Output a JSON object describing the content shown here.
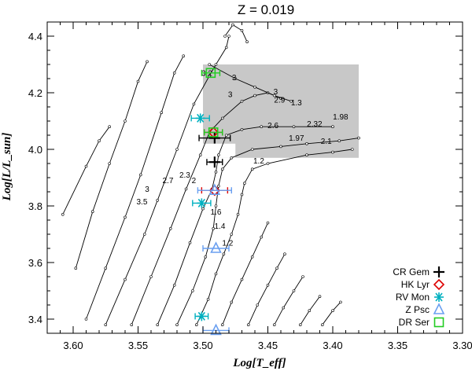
{
  "chart_data": {
    "type": "scatter",
    "title": "Z = 0.019",
    "xlabel": "Log[T_eff]",
    "ylabel": "Log[L/L_sun]",
    "xlim": [
      3.62,
      3.3
    ],
    "ylim": [
      3.35,
      4.45
    ],
    "x_ticks": [
      3.6,
      3.55,
      3.5,
      3.45,
      3.4,
      3.35,
      3.3
    ],
    "y_ticks": [
      3.4,
      3.6,
      3.8,
      4.0,
      4.2,
      4.4
    ],
    "shaded_region": {
      "x": [
        3.5,
        3.38
      ],
      "y": [
        3.97,
        4.3
      ],
      "color": "#c8c8c8",
      "notch": {
        "x": [
          3.5,
          3.475
        ],
        "y": [
          3.97,
          4.02
        ]
      }
    },
    "tracks": [
      {
        "points": [
          [
            3.608,
            3.77
          ],
          [
            3.59,
            3.94
          ],
          [
            3.58,
            4.03
          ],
          [
            3.572,
            4.08
          ]
        ]
      },
      {
        "points": [
          [
            3.598,
            3.58
          ],
          [
            3.585,
            3.78
          ],
          [
            3.572,
            3.95
          ],
          [
            3.56,
            4.1
          ],
          [
            3.55,
            4.24
          ],
          [
            3.543,
            4.31
          ]
        ]
      },
      {
        "points": [
          [
            3.59,
            3.4
          ],
          [
            3.575,
            3.58
          ],
          [
            3.56,
            3.76
          ],
          [
            3.548,
            3.91
          ],
          [
            3.532,
            4.13
          ],
          [
            3.522,
            4.27
          ],
          [
            3.515,
            4.33
          ]
        ]
      },
      {
        "points": [
          [
            3.575,
            3.38
          ],
          [
            3.56,
            3.54
          ],
          [
            3.545,
            3.7
          ],
          [
            3.535,
            3.82
          ],
          [
            3.52,
            4.0
          ],
          [
            3.507,
            4.16
          ],
          [
            3.495,
            4.26
          ],
          [
            3.49,
            4.3
          ],
          [
            3.482,
            4.36
          ],
          [
            3.48,
            4.4
          ]
        ]
      },
      {
        "points": [
          [
            3.555,
            3.38
          ],
          [
            3.54,
            3.55
          ],
          [
            3.525,
            3.72
          ],
          [
            3.513,
            3.86
          ],
          [
            3.502,
            3.98
          ],
          [
            3.495,
            4.06
          ],
          [
            3.485,
            4.11
          ],
          [
            3.47,
            4.17
          ],
          [
            3.46,
            4.19
          ],
          [
            3.45,
            4.2
          ],
          [
            3.44,
            4.18
          ]
        ]
      },
      {
        "points": [
          [
            3.535,
            3.38
          ],
          [
            3.522,
            3.52
          ],
          [
            3.51,
            3.67
          ],
          [
            3.5,
            3.79
          ],
          [
            3.493,
            3.86
          ],
          [
            3.49,
            3.92
          ],
          [
            3.488,
            3.98
          ],
          [
            3.482,
            4.05
          ],
          [
            3.47,
            4.07
          ],
          [
            3.455,
            4.08
          ],
          [
            3.43,
            4.08
          ],
          [
            3.4,
            4.08
          ]
        ]
      },
      {
        "points": [
          [
            3.52,
            3.38
          ],
          [
            3.508,
            3.5
          ],
          [
            3.498,
            3.62
          ],
          [
            3.492,
            3.72
          ],
          [
            3.49,
            3.8
          ],
          [
            3.488,
            3.87
          ],
          [
            3.485,
            3.93
          ],
          [
            3.478,
            3.97
          ],
          [
            3.462,
            4.0
          ],
          [
            3.44,
            4.01
          ],
          [
            3.42,
            4.02
          ],
          [
            3.395,
            4.03
          ],
          [
            3.38,
            4.04
          ]
        ]
      },
      {
        "points": [
          [
            3.505,
            3.38
          ],
          [
            3.496,
            3.47
          ],
          [
            3.49,
            3.56
          ],
          [
            3.484,
            3.63
          ],
          [
            3.478,
            3.7
          ],
          [
            3.473,
            3.77
          ],
          [
            3.47,
            3.84
          ],
          [
            3.468,
            3.88
          ],
          [
            3.462,
            3.93
          ],
          [
            3.45,
            3.95
          ],
          [
            3.42,
            3.98
          ],
          [
            3.4,
            3.99
          ],
          [
            3.385,
            4.0
          ]
        ]
      },
      {
        "points": [
          [
            3.485,
            3.38
          ],
          [
            3.478,
            3.46
          ],
          [
            3.47,
            3.54
          ],
          [
            3.462,
            3.62
          ],
          [
            3.455,
            3.69
          ],
          [
            3.45,
            3.74
          ]
        ]
      },
      {
        "points": [
          [
            3.465,
            3.38
          ],
          [
            3.458,
            3.45
          ],
          [
            3.45,
            3.52
          ],
          [
            3.443,
            3.58
          ],
          [
            3.437,
            3.63
          ]
        ]
      },
      {
        "points": [
          [
            3.445,
            3.38
          ],
          [
            3.438,
            3.44
          ],
          [
            3.43,
            3.5
          ],
          [
            3.423,
            3.55
          ]
        ]
      },
      {
        "points": [
          [
            3.425,
            3.38
          ],
          [
            3.418,
            3.43
          ],
          [
            3.41,
            3.48
          ]
        ]
      },
      {
        "points": [
          [
            3.408,
            3.38
          ],
          [
            3.4,
            3.43
          ],
          [
            3.394,
            3.46
          ]
        ]
      },
      {
        "points": [
          [
            3.483,
            4.4
          ],
          [
            3.477,
            4.44
          ],
          [
            3.47,
            4.42
          ],
          [
            3.466,
            4.38
          ]
        ]
      },
      {
        "points": [
          [
            3.495,
            4.3
          ],
          [
            3.475,
            4.25
          ],
          [
            3.46,
            4.22
          ],
          [
            3.445,
            4.19
          ],
          [
            3.432,
            4.17
          ]
        ]
      }
    ],
    "annotations": [
      {
        "text": "3.2",
        "x": 3.497,
        "y": 4.26
      },
      {
        "text": "3",
        "x": 3.476,
        "y": 4.245
      },
      {
        "text": "3",
        "x": 3.479,
        "y": 4.185
      },
      {
        "text": "3",
        "x": 3.444,
        "y": 4.195
      },
      {
        "text": "2.9",
        "x": 3.441,
        "y": 4.165
      },
      {
        "text": "1.3",
        "x": 3.428,
        "y": 4.155
      },
      {
        "text": "2.6",
        "x": 3.446,
        "y": 4.075
      },
      {
        "text": "2.32",
        "x": 3.414,
        "y": 4.08
      },
      {
        "text": "1.98",
        "x": 3.394,
        "y": 4.105
      },
      {
        "text": "1.97",
        "x": 3.428,
        "y": 4.03
      },
      {
        "text": "2.1",
        "x": 3.405,
        "y": 4.02
      },
      {
        "text": "1.2",
        "x": 3.457,
        "y": 3.95
      },
      {
        "text": "2.3",
        "x": 3.514,
        "y": 3.9
      },
      {
        "text": "2.7",
        "x": 3.527,
        "y": 3.88
      },
      {
        "text": "2",
        "x": 3.507,
        "y": 3.88
      },
      {
        "text": "3",
        "x": 3.543,
        "y": 3.85
      },
      {
        "text": "3.5",
        "x": 3.547,
        "y": 3.805
      },
      {
        "text": "1.6",
        "x": 3.49,
        "y": 3.77
      },
      {
        "text": "1.4",
        "x": 3.487,
        "y": 3.72
      },
      {
        "text": "1.2",
        "x": 3.481,
        "y": 3.66
      }
    ],
    "series": [
      {
        "name": "CR Gem",
        "marker": "plus",
        "color": "#000000",
        "points": [
          {
            "x": 3.491,
            "y": 4.04,
            "xerr": 0.012
          },
          {
            "x": 3.491,
            "y": 3.955,
            "xerr": 0.006
          }
        ]
      },
      {
        "name": "HK Lyr",
        "marker": "diamond",
        "color": "#dd0000",
        "points": [
          {
            "x": 3.492,
            "y": 4.06,
            "xerr": 0.007
          },
          {
            "x": 3.491,
            "y": 3.855,
            "xerr": 0.01
          }
        ]
      },
      {
        "name": "RV Mon",
        "marker": "asterisk",
        "color": "#00b0c0",
        "points": [
          {
            "x": 3.502,
            "y": 4.11,
            "xerr": 0.007
          },
          {
            "x": 3.501,
            "y": 3.81,
            "xerr": 0.007
          },
          {
            "x": 3.501,
            "y": 3.41,
            "xerr": 0.005
          }
        ]
      },
      {
        "name": "Z Psc",
        "marker": "triangle",
        "color": "#6a9ff0",
        "points": [
          {
            "x": 3.491,
            "y": 3.855,
            "xerr": 0.013
          },
          {
            "x": 3.49,
            "y": 3.65,
            "xerr": 0.01
          },
          {
            "x": 3.49,
            "y": 3.36,
            "xerr": 0.01
          }
        ]
      },
      {
        "name": "DR Ser",
        "marker": "square",
        "color": "#22cc22",
        "points": [
          {
            "x": 3.494,
            "y": 4.27,
            "xerr": 0.007
          },
          {
            "x": 3.492,
            "y": 4.06,
            "xerr": 0.007
          }
        ]
      }
    ],
    "legend_position": "bottom-right"
  }
}
